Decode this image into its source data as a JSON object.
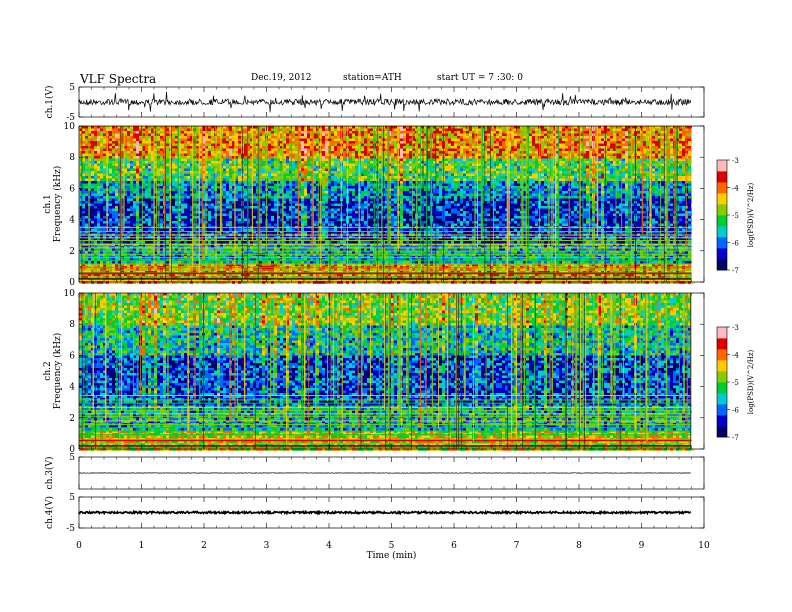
{
  "header": {
    "title": "VLF Spectra",
    "date": "Dec.19, 2012",
    "station": "station=ATH",
    "start": "start  UT =   7 :30: 0"
  },
  "chart_data": [
    {
      "type": "line",
      "ylabel": "ch.1(V)",
      "ylim": [
        -5,
        5
      ],
      "yticks": [
        "5",
        "-5"
      ],
      "description_values": "noisy waveform around 0 V, amplitude ~1 V",
      "baseline": 0,
      "color": "#000000"
    },
    {
      "type": "heatmap",
      "ylabel": "Frequency  (kHz)",
      "panel_label": "ch.1",
      "ylim": [
        0,
        10
      ],
      "yticks": [
        "0",
        "2",
        "4",
        "6",
        "8",
        "10"
      ],
      "colorbar": {
        "label": "log(PSD)(V^2/Hz)",
        "range": [
          -7,
          -3
        ],
        "ticks": [
          "-3",
          "-4",
          "-5",
          "-6",
          "-7"
        ],
        "colors": [
          "#000066",
          "#0000cc",
          "#0066ff",
          "#00cccc",
          "#00cc33",
          "#88cc00",
          "#ffcc00",
          "#ff6600",
          "#dd0000",
          "#ffbbbb"
        ]
      },
      "bands": [
        {
          "from": 0,
          "to": 1.2,
          "level": -4.2
        },
        {
          "from": 1.2,
          "to": 2.6,
          "level": -5.6
        },
        {
          "from": 2.6,
          "to": 5.5,
          "level": -6.3
        },
        {
          "from": 5.5,
          "to": 6.5,
          "level": -5.8
        },
        {
          "from": 6.5,
          "to": 8,
          "level": -5.1
        },
        {
          "from": 8,
          "to": 10,
          "level": -4.2
        }
      ]
    },
    {
      "type": "heatmap",
      "ylabel": "Frequency  (kHz)",
      "panel_label": "ch.2",
      "ylim": [
        0,
        10
      ],
      "yticks": [
        "0",
        "2",
        "4",
        "6",
        "8",
        "10"
      ],
      "colorbar": {
        "label": "log(PSD)(V^2/Hz)",
        "range": [
          -7,
          -3
        ],
        "ticks": [
          "-3",
          "-4",
          "-5",
          "-6",
          "-7"
        ],
        "colors": [
          "#000066",
          "#0000cc",
          "#0066ff",
          "#00cccc",
          "#00cc33",
          "#88cc00",
          "#ffcc00",
          "#ff6600",
          "#dd0000",
          "#ffbbbb"
        ]
      },
      "bands": [
        {
          "from": 0,
          "to": 1.2,
          "level": -4.6
        },
        {
          "from": 1.2,
          "to": 2.8,
          "level": -5.6
        },
        {
          "from": 2.8,
          "to": 6,
          "level": -6.2
        },
        {
          "from": 6,
          "to": 8,
          "level": -5.5
        },
        {
          "from": 8,
          "to": 10,
          "level": -4.9
        }
      ]
    },
    {
      "type": "line",
      "ylabel": "ch.3(V)",
      "ylim": [
        -5,
        5
      ],
      "yticks": [
        "5"
      ],
      "baseline": 0,
      "color": "#000000"
    },
    {
      "type": "line",
      "ylabel": "ch.4(V)",
      "ylim": [
        -5,
        5
      ],
      "yticks": [
        "5",
        "-5"
      ],
      "baseline": 0,
      "color": "#000000"
    }
  ],
  "xaxis": {
    "label": "Time  (min)",
    "range": [
      0,
      10
    ],
    "data_end": 9.8,
    "ticks": [
      "0",
      "1",
      "2",
      "3",
      "4",
      "5",
      "6",
      "7",
      "8",
      "9",
      "10"
    ]
  }
}
